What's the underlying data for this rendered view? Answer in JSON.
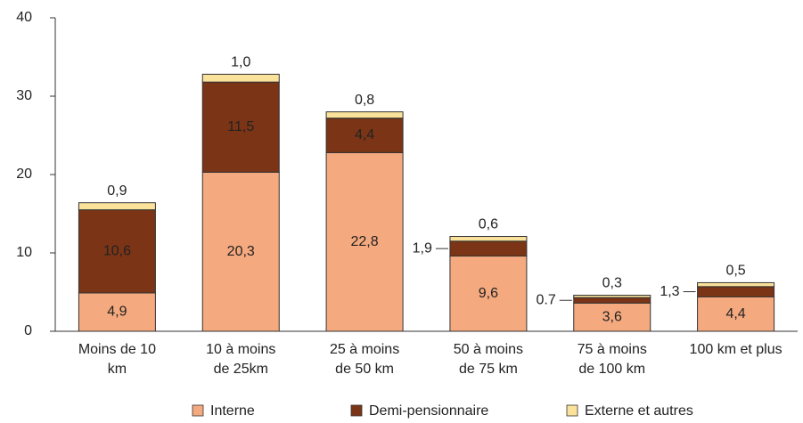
{
  "chart_data": {
    "type": "stacked_bar",
    "categories": [
      "Moins de 10\nkm",
      "10 à moins\nde 25km",
      "25 à moins\nde 50 km",
      "50 à moins\nde 75 km",
      "75 à moins\nde 100 km",
      "100 km et plus"
    ],
    "series": [
      {
        "name": "Interne",
        "color": "#f5a97f",
        "values": [
          4.9,
          20.3,
          22.8,
          9.6,
          3.6,
          4.4
        ],
        "value_labels": [
          "4,9",
          "20,3",
          "22,8",
          "9,6",
          "3,6",
          "4,4"
        ]
      },
      {
        "name": "Demi-pensionnaire",
        "color": "#7b3516",
        "values": [
          10.6,
          11.5,
          4.4,
          1.9,
          0.7,
          1.3
        ],
        "value_labels": [
          "10,6",
          "11,5",
          "4,4",
          "1,9",
          "0.7",
          "1,3"
        ]
      },
      {
        "name": "Externe et autres",
        "color": "#fbe29b",
        "values": [
          0.9,
          1.0,
          0.8,
          0.6,
          0.3,
          0.5
        ],
        "value_labels": [
          "0,9",
          "1,0",
          "0,8",
          "0,6",
          "0,3",
          "0,5"
        ]
      }
    ],
    "ylim": [
      0,
      40
    ],
    "yticks": [
      0,
      10,
      20,
      30,
      40
    ],
    "grid": false,
    "legend": "bottom"
  }
}
